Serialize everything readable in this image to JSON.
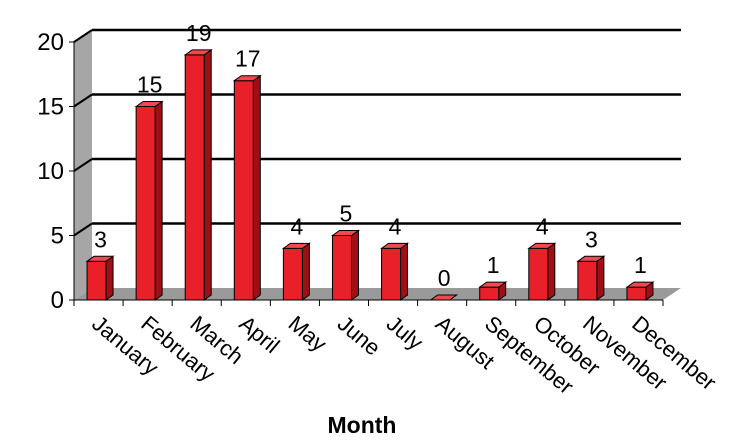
{
  "chart_data": {
    "type": "bar",
    "categories": [
      "January",
      "February",
      "March",
      "April",
      "May",
      "June",
      "July",
      "August",
      "September",
      "October",
      "November",
      "December"
    ],
    "values": [
      3,
      15,
      19,
      17,
      4,
      5,
      4,
      0,
      1,
      4,
      3,
      1
    ],
    "xlabel": "Month",
    "ylim": [
      0,
      20
    ],
    "yticks": [
      0,
      5,
      10,
      15,
      20
    ],
    "grid": true,
    "legend": "none",
    "style": "3d",
    "colors": {
      "bar_front": "#e8202a",
      "bar_side": "#9e1016",
      "bar_top": "#f04a4f",
      "wall": "#a6a6a6",
      "floor": "#9a9a9a",
      "grid": "#000000"
    }
  }
}
